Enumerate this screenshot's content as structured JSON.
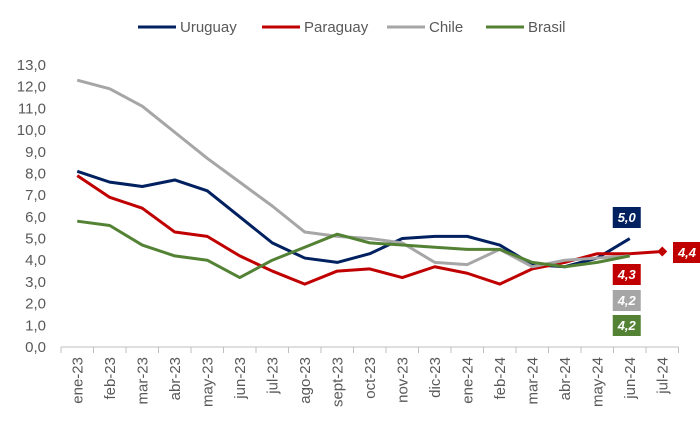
{
  "chart_data": {
    "type": "line",
    "title": "",
    "xlabel": "",
    "ylabel": "",
    "ylim": [
      0,
      13
    ],
    "yticks": [
      "0,0",
      "1,0",
      "2,0",
      "3,0",
      "4,0",
      "5,0",
      "6,0",
      "7,0",
      "8,0",
      "9,0",
      "10,0",
      "11,0",
      "12,0",
      "13,0"
    ],
    "grid": false,
    "legend_position": "top",
    "categories": [
      "ene-23",
      "feb-23",
      "mar-23",
      "abr-23",
      "may-23",
      "jun-23",
      "jul-23",
      "ago-23",
      "sept-23",
      "oct-23",
      "nov-23",
      "dic-23",
      "ene-24",
      "feb-24",
      "mar-24",
      "abr-24",
      "may-24",
      "jun-24",
      "jul-24"
    ],
    "series": [
      {
        "name": "Uruguay",
        "color": "#002060",
        "values": [
          8.1,
          7.6,
          7.4,
          7.7,
          7.2,
          6.0,
          4.8,
          4.1,
          3.9,
          4.3,
          5.0,
          5.1,
          5.1,
          4.7,
          3.8,
          3.7,
          4.1,
          5.0,
          null
        ],
        "end_label": "5,0"
      },
      {
        "name": "Paraguay",
        "color": "#C00000",
        "values": [
          7.9,
          6.9,
          6.4,
          5.3,
          5.1,
          4.2,
          3.5,
          2.9,
          3.5,
          3.6,
          3.2,
          3.7,
          3.4,
          2.9,
          3.6,
          3.9,
          4.3,
          4.3,
          4.4
        ],
        "end_label": "4,3",
        "extra_label": "4,4"
      },
      {
        "name": "Chile",
        "color": "#A6A6A6",
        "values": [
          12.3,
          11.9,
          11.1,
          9.9,
          8.7,
          7.6,
          6.5,
          5.3,
          5.1,
          5.0,
          4.8,
          3.9,
          3.8,
          4.5,
          3.7,
          4.0,
          4.1,
          4.2,
          null
        ],
        "end_label": "4,2"
      },
      {
        "name": "Brasil",
        "color": "#548235",
        "values": [
          5.8,
          5.6,
          4.7,
          4.2,
          4.0,
          3.2,
          4.0,
          4.6,
          5.2,
          4.8,
          4.7,
          4.6,
          4.5,
          4.5,
          3.9,
          3.7,
          3.9,
          4.2,
          null
        ],
        "end_label": "4,2"
      }
    ]
  }
}
